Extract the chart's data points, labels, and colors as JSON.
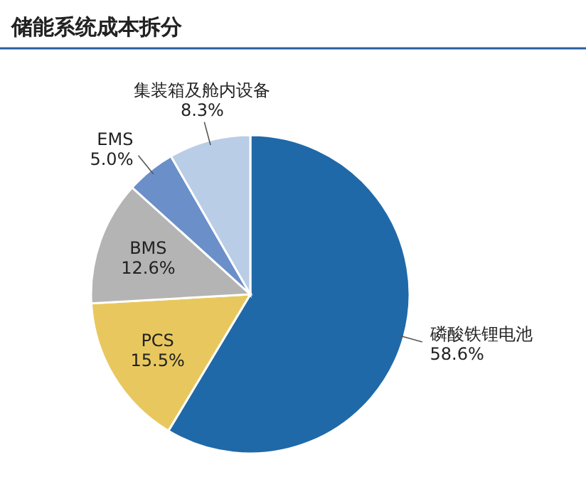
{
  "chart_data": {
    "type": "pie",
    "title": "储能系统成本拆分",
    "categories": [
      "磷酸铁锂电池",
      "PCS",
      "BMS",
      "EMS",
      "集装箱及舱内设备"
    ],
    "values": [
      58.6,
      15.5,
      12.6,
      5.0,
      8.3
    ],
    "value_labels": [
      "58.6%",
      "15.5%",
      "12.6%",
      "5.0%",
      "8.3%"
    ],
    "colors": [
      "#1f69a8",
      "#e8c85e",
      "#b4b4b4",
      "#6b8fc9",
      "#b9cde6"
    ]
  }
}
